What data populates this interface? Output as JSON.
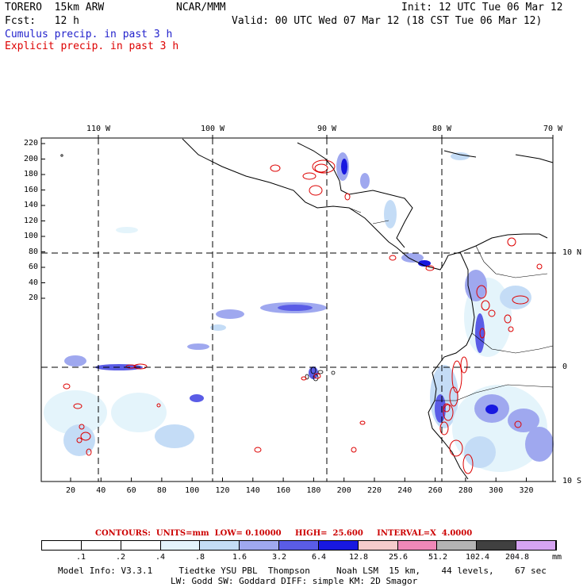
{
  "header": {
    "model": "TORERO  15km ARW",
    "center": "NCAR/MMM",
    "init": "Init: 12 UTC Tue 06 Mar 12",
    "fcst": "Fcst:   12 h",
    "valid": "Valid: 00 UTC Wed 07 Mar 12 (18 CST Tue 06 Mar 12)",
    "legend_cumulus": "Cumulus precip. in past 3 h",
    "legend_explicit": "Explicit precip. in past 3 h",
    "color_cumulus": "#2222cc",
    "color_explicit": "#dd0000"
  },
  "map": {
    "top_lon_labels": [
      "110 W",
      "100 W",
      "90 W",
      "80 W",
      "70 W"
    ],
    "right_lat_labels": [
      "10 N",
      "0",
      "10 S"
    ],
    "y_ticks": [
      "220",
      "200",
      "180",
      "160",
      "140",
      "120",
      "100",
      "80",
      "60",
      "40",
      "20"
    ],
    "x_ticks": [
      "20",
      "40",
      "60",
      "80",
      "100",
      "120",
      "140",
      "160",
      "180",
      "200",
      "220",
      "240",
      "260",
      "280",
      "300",
      "320"
    ]
  },
  "contour_info": {
    "label": "CONTOURS:  UNITS=mm  LOW= 0.10000     HIGH=  25.600     INTERVAL=X  4.0000",
    "color": "#cc0000"
  },
  "colorbar": {
    "labels": [
      ".1",
      ".2",
      ".4",
      ".8",
      "1.6",
      "3.2",
      "6.4",
      "12.8",
      "25.6",
      "51.2",
      "102.4",
      "204.8"
    ],
    "unit": "mm",
    "colors": [
      "#ffffff",
      "#ffffff",
      "#ffffff",
      "#e4f4fb",
      "#c4dcf6",
      "#9fa8ef",
      "#5a5ce6",
      "#1818e0",
      "#f6cccc",
      "#f088b8",
      "#b4b4b4",
      "#404040",
      "#d6a4f2"
    ]
  },
  "footer": {
    "line1": "Model Info: V3.3.1     Tiedtke YSU PBL  Thompson     Noah LSM  15 km,    44 levels,    67 sec",
    "line2": "LW: Godd SW: Goddard DIFF: simple KM: 2D Smagor"
  }
}
